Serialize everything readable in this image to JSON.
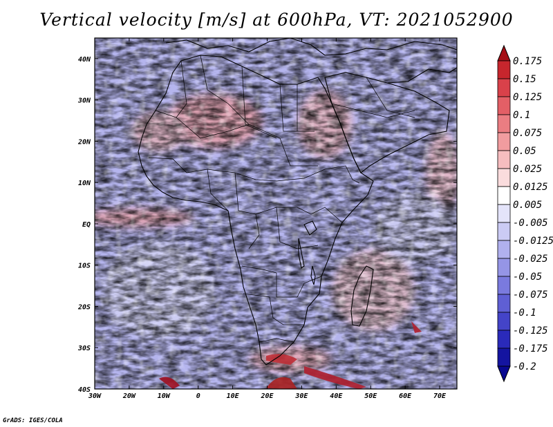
{
  "title": "Vertical velocity [m/s] at 600hPa, VT: 2021052900",
  "map": {
    "variable": "Vertical velocity",
    "units": "m/s",
    "level": "600hPa",
    "valid_time": "2021052900",
    "region": "Africa",
    "lon_range": [
      -30,
      75
    ],
    "lat_range": [
      -40,
      45
    ],
    "lat_labels": [
      "40N",
      "30N",
      "20N",
      "10N",
      "EQ",
      "10S",
      "20S",
      "30S",
      "40S"
    ],
    "lat_values": [
      40,
      30,
      20,
      10,
      0,
      -10,
      -20,
      -30,
      -40
    ],
    "lon_labels": [
      "30W",
      "20W",
      "10W",
      "0",
      "10E",
      "20E",
      "30E",
      "40E",
      "50E",
      "60E",
      "70E"
    ],
    "lon_values": [
      -30,
      -20,
      -10,
      0,
      10,
      20,
      30,
      40,
      50,
      60,
      70
    ]
  },
  "colorbar": {
    "labels": [
      "0.175",
      "0.15",
      "0.125",
      "0.1",
      "0.075",
      "0.05",
      "0.025",
      "0.0125",
      "0.005",
      "-0.005",
      "-0.0125",
      "-0.025",
      "-0.05",
      "-0.075",
      "-0.1",
      "-0.125",
      "-0.175",
      "-0.2"
    ],
    "colors": [
      "#a50f15",
      "#c7262d",
      "#d9414a",
      "#e35f66",
      "#eb7d82",
      "#f19c9f",
      "#f6bdbf",
      "#fadcdd",
      "#ffffff",
      "#e4e4fa",
      "#cbcbf4",
      "#b0b0ee",
      "#9595e6",
      "#7a7ade",
      "#5f5fd4",
      "#4444c8",
      "#2a2aba",
      "#1414a0",
      "#080890"
    ]
  },
  "credit": "GrADS: IGES/COLA"
}
